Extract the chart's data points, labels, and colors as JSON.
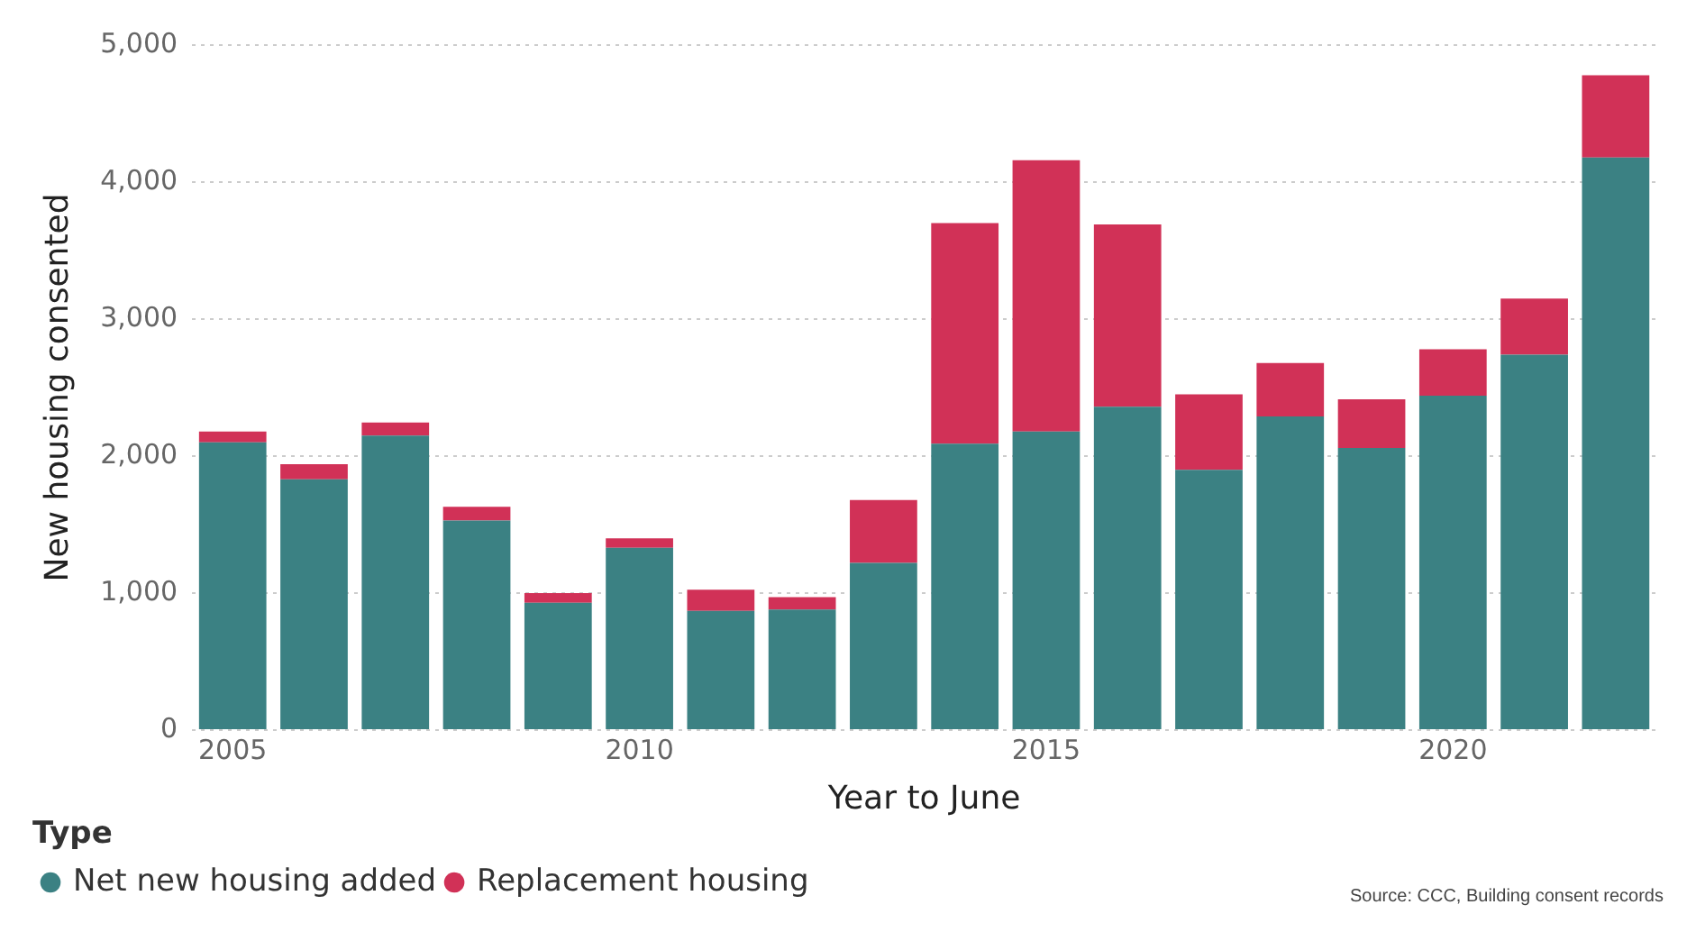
{
  "chart_data": {
    "type": "bar",
    "stacked": true,
    "xlabel": "Year to June",
    "ylabel": "New housing consented",
    "legend_title": "Type",
    "legend": "bottom left",
    "grid": "y",
    "categories": [
      "2005",
      null,
      null,
      null,
      null,
      "2010",
      null,
      null,
      null,
      null,
      "2015",
      null,
      null,
      null,
      null,
      "2020",
      null,
      null
    ],
    "series": [
      {
        "name": "Net new housing added",
        "color": "#3b8183",
        "values": [
          2100,
          1830,
          2150,
          1530,
          930,
          1330,
          870,
          880,
          1220,
          2090,
          2180,
          2360,
          1900,
          2290,
          2060,
          2440,
          2740,
          4180
        ]
      },
      {
        "name": "Replacement housing",
        "color": "#d13157",
        "values": [
          80,
          110,
          95,
          100,
          70,
          70,
          155,
          90,
          460,
          1610,
          1980,
          1330,
          550,
          390,
          355,
          340,
          410,
          600
        ]
      }
    ],
    "ylim": [
      0,
      5000
    ],
    "yticks": [
      0,
      {
        "value": 1000,
        "label": "1,000"
      },
      {
        "value": 2000,
        "label": "2,000"
      },
      {
        "value": 3000,
        "label": "3,000"
      },
      {
        "value": 4000,
        "label": "4,000"
      },
      {
        "value": 5000,
        "label": "5,000"
      }
    ],
    "annotations": [
      "Source: CCC, Building consent records"
    ]
  }
}
